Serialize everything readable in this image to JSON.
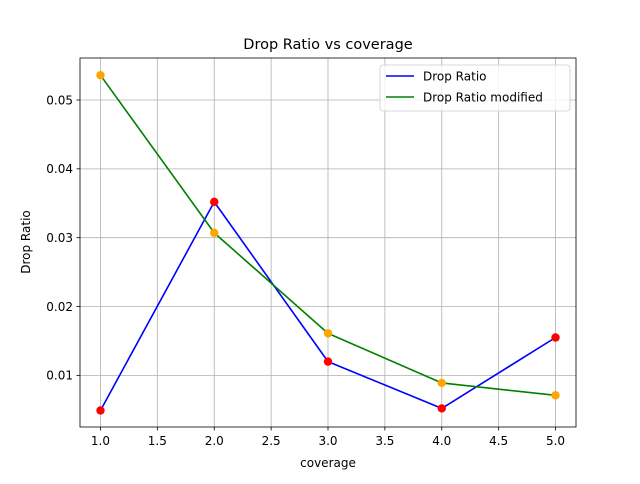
{
  "chart_data": {
    "type": "line",
    "title": "Drop Ratio vs coverage",
    "xlabel": "coverage",
    "ylabel": "Drop Ratio",
    "xlim": [
      0.82,
      5.18
    ],
    "ylim": [
      0.0025,
      0.0561
    ],
    "xticks": [
      1.0,
      1.5,
      2.0,
      2.5,
      3.0,
      3.5,
      4.0,
      4.5,
      5.0
    ],
    "xtick_labels": [
      "1.0",
      "1.5",
      "2.0",
      "2.5",
      "3.0",
      "3.5",
      "4.0",
      "4.5",
      "5.0"
    ],
    "yticks": [
      0.01,
      0.02,
      0.03,
      0.04,
      0.05
    ],
    "ytick_labels": [
      "0.01",
      "0.02",
      "0.03",
      "0.04",
      "0.05"
    ],
    "grid": true,
    "legend_position": "top-right",
    "x": [
      1.0,
      2.0,
      3.0,
      4.0,
      5.0
    ],
    "series": [
      {
        "name": "Drop Ratio",
        "values": [
          0.0049,
          0.0352,
          0.012,
          0.0052,
          0.0155
        ],
        "line_color": "#0000ff",
        "marker_color": "#ff0000"
      },
      {
        "name": "Drop Ratio modified",
        "values": [
          0.0536,
          0.0307,
          0.0161,
          0.0089,
          0.0071
        ],
        "line_color": "#008000",
        "marker_color": "#ffa500"
      }
    ]
  }
}
